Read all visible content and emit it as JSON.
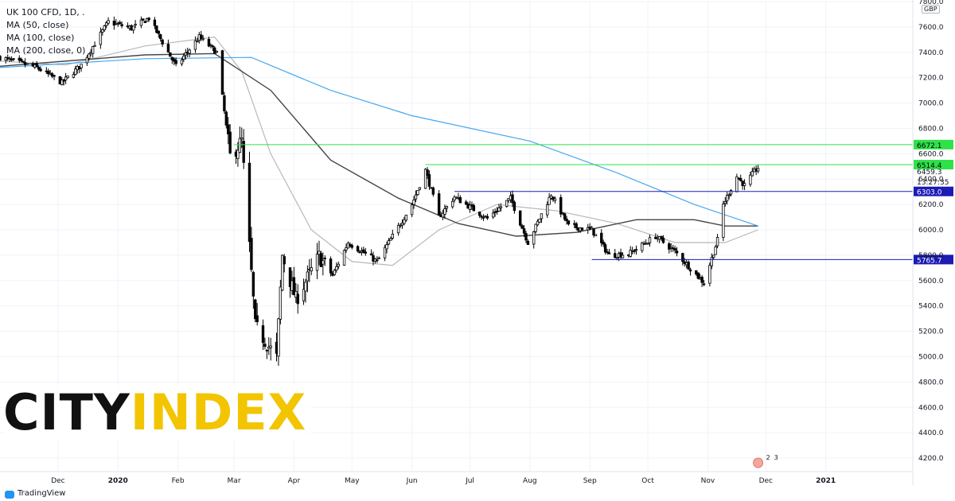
{
  "legend": {
    "symbol": "UK 100 CFD, 1D, .",
    "ma1": "MA (50, close)",
    "ma2": "MA (100, close)",
    "ma3": "MA (200, close, 0)"
  },
  "currency": "GBP",
  "brand": {
    "city": "CITY",
    "index": "INDEX"
  },
  "footer": {
    "tradingview": "TradingView"
  },
  "events": {
    "label_2": "2",
    "label_3": "3"
  },
  "colors": {
    "background": "#ffffff",
    "candle": "#000000",
    "ma50": "#b8b8b8",
    "ma100": "#444444",
    "ma200": "#45a8f0",
    "resistance": "#2ee24a",
    "support": "#1b1bb5",
    "countdown": "#ffffff"
  },
  "chart_data": {
    "type": "candlestick",
    "yaxis": {
      "range": [
        4100,
        7800
      ],
      "ticks": [
        "4200.0",
        "4400.0",
        "4600.0",
        "4800.0",
        "5000.0",
        "5200.0",
        "5400.0",
        "5600.0",
        "5800.0",
        "6000.0",
        "6200.0",
        "6400.0",
        "6600.0",
        "6800.0",
        "7000.0",
        "7200.0",
        "7400.0",
        "7600.0",
        "7800.0"
      ]
    },
    "xaxis": {
      "labels": [
        "Dec",
        "2020",
        "Feb",
        "Mar",
        "Apr",
        "May",
        "Jun",
        "Jul",
        "Aug",
        "Sep",
        "Oct",
        "Nov",
        "Dec",
        "2021"
      ],
      "label_dates": [
        "2019-12-01",
        "2020-01-01",
        "2020-02-01",
        "2020-03-01",
        "2020-04-01",
        "2020-05-01",
        "2020-06-01",
        "2020-07-01",
        "2020-08-01",
        "2020-09-01",
        "2020-10-01",
        "2020-11-01",
        "2020-12-01",
        "2021-01-01"
      ],
      "range": [
        "2019-11-01",
        "2021-02-15"
      ]
    },
    "anchors": [
      {
        "date": "2019-11-01",
        "close": 7360
      },
      {
        "date": "2019-11-20",
        "close": 7280
      },
      {
        "date": "2019-12-03",
        "close": 7160
      },
      {
        "date": "2019-12-13",
        "close": 7300
      },
      {
        "date": "2019-12-27",
        "close": 7640
      },
      {
        "date": "2020-01-08",
        "close": 7590
      },
      {
        "date": "2020-01-17",
        "close": 7670
      },
      {
        "date": "2020-01-31",
        "close": 7290
      },
      {
        "date": "2020-02-12",
        "close": 7520
      },
      {
        "date": "2020-02-21",
        "close": 7400
      },
      {
        "date": "2020-02-28",
        "close": 6580
      },
      {
        "date": "2020-03-05",
        "close": 6700
      },
      {
        "date": "2020-03-12",
        "close": 5240
      },
      {
        "date": "2020-03-16",
        "close": 5150
      },
      {
        "date": "2020-03-23",
        "close": 4990
      },
      {
        "date": "2020-03-26",
        "close": 5800
      },
      {
        "date": "2020-04-02",
        "close": 5450
      },
      {
        "date": "2020-04-14",
        "close": 5790
      },
      {
        "date": "2020-04-21",
        "close": 5640
      },
      {
        "date": "2020-04-29",
        "close": 5900
      },
      {
        "date": "2020-05-14",
        "close": 5750
      },
      {
        "date": "2020-06-01",
        "close": 6200
      },
      {
        "date": "2020-06-08",
        "close": 6470
      },
      {
        "date": "2020-06-15",
        "close": 6100
      },
      {
        "date": "2020-06-23",
        "close": 6260
      },
      {
        "date": "2020-07-01",
        "close": 6180
      },
      {
        "date": "2020-07-10",
        "close": 6090
      },
      {
        "date": "2020-07-22",
        "close": 6250
      },
      {
        "date": "2020-07-31",
        "close": 5900
      },
      {
        "date": "2020-08-12",
        "close": 6280
      },
      {
        "date": "2020-08-21",
        "close": 6030
      },
      {
        "date": "2020-09-02",
        "close": 6000
      },
      {
        "date": "2020-09-11",
        "close": 5800
      },
      {
        "date": "2020-09-21",
        "close": 5810
      },
      {
        "date": "2020-10-05",
        "close": 5950
      },
      {
        "date": "2020-10-15",
        "close": 5830
      },
      {
        "date": "2020-10-30",
        "close": 5580
      },
      {
        "date": "2020-11-06",
        "close": 5920
      },
      {
        "date": "2020-11-09",
        "close": 6200
      },
      {
        "date": "2020-11-16",
        "close": 6420
      },
      {
        "date": "2020-11-20",
        "close": 6350
      },
      {
        "date": "2020-11-25",
        "close": 6460
      },
      {
        "date": "2020-11-27",
        "close": 6490
      }
    ],
    "moving_averages": [
      {
        "name": "MA (50, close)",
        "period": 50,
        "points": [
          [
            "2019-11-01",
            7330
          ],
          [
            "2019-12-05",
            7300
          ],
          [
            "2020-01-15",
            7450
          ],
          [
            "2020-02-20",
            7520
          ],
          [
            "2020-03-05",
            7250
          ],
          [
            "2020-03-20",
            6600
          ],
          [
            "2020-04-10",
            6000
          ],
          [
            "2020-05-01",
            5750
          ],
          [
            "2020-05-22",
            5720
          ],
          [
            "2020-06-15",
            6000
          ],
          [
            "2020-07-15",
            6200
          ],
          [
            "2020-08-15",
            6150
          ],
          [
            "2020-09-15",
            6050
          ],
          [
            "2020-10-15",
            5900
          ],
          [
            "2020-11-10",
            5900
          ],
          [
            "2020-11-27",
            6000
          ]
        ]
      },
      {
        "name": "MA (100, close)",
        "period": 100,
        "points": [
          [
            "2019-11-01",
            7290
          ],
          [
            "2020-01-15",
            7380
          ],
          [
            "2020-02-20",
            7390
          ],
          [
            "2020-03-20",
            7100
          ],
          [
            "2020-04-20",
            6550
          ],
          [
            "2020-05-25",
            6250
          ],
          [
            "2020-06-25",
            6050
          ],
          [
            "2020-07-25",
            5950
          ],
          [
            "2020-08-25",
            5980
          ],
          [
            "2020-09-25",
            6080
          ],
          [
            "2020-10-25",
            6080
          ],
          [
            "2020-11-10",
            6030
          ],
          [
            "2020-11-27",
            6030
          ]
        ]
      },
      {
        "name": "MA (200, close, 0)",
        "period": 200,
        "points": [
          [
            "2019-11-01",
            7280
          ],
          [
            "2020-01-15",
            7350
          ],
          [
            "2020-03-10",
            7360
          ],
          [
            "2020-04-20",
            7100
          ],
          [
            "2020-06-01",
            6900
          ],
          [
            "2020-08-01",
            6700
          ],
          [
            "2020-09-15",
            6450
          ],
          [
            "2020-10-25",
            6200
          ],
          [
            "2020-11-27",
            6030
          ]
        ]
      }
    ],
    "levels": [
      {
        "kind": "resistance",
        "price": 6672.1,
        "label": "6672.1",
        "start": "2020-03-01"
      },
      {
        "kind": "resistance",
        "price": 6514.4,
        "label": "6514.4",
        "start": "2020-06-08"
      },
      {
        "kind": "support",
        "price": 6303.0,
        "label": "6303.0",
        "start": "2020-06-23"
      },
      {
        "kind": "support",
        "price": 5765.7,
        "label": "5765.7",
        "start": "2020-09-02"
      }
    ],
    "last_price": {
      "value": 6459.3,
      "label": "6459.3",
      "countdown": "13:27:35"
    }
  }
}
